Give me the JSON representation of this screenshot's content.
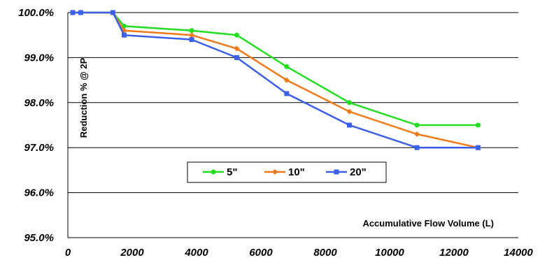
{
  "chart_data": {
    "type": "line",
    "title": "",
    "xlabel": "Accumulative Flow Volume (L)",
    "ylabel": "Reduction % @ 2P",
    "xlim": [
      0,
      14000
    ],
    "ylim": [
      95.0,
      100.0
    ],
    "xticks": [
      0,
      2000,
      4000,
      6000,
      8000,
      10000,
      12000,
      14000
    ],
    "xtick_labels": [
      "0",
      "2000",
      "4000",
      "6000",
      "8000",
      "10000",
      "12000",
      "14000"
    ],
    "yticks": [
      95.0,
      96.0,
      97.0,
      98.0,
      99.0,
      100.0
    ],
    "ytick_labels": [
      "95.0%",
      "96.0%",
      "97.0%",
      "98.0%",
      "99.0%",
      "100.0%"
    ],
    "grid": "horizontal",
    "legend_position": "center",
    "series": [
      {
        "name": "5\"",
        "color": "#22dd22",
        "marker": "circle",
        "x": [
          150,
          400,
          1400,
          1750,
          3850,
          5250,
          6800,
          8750,
          10850,
          12750
        ],
        "y": [
          100.0,
          100.0,
          100.0,
          99.7,
          99.6,
          99.5,
          98.8,
          98.0,
          97.5,
          97.5
        ]
      },
      {
        "name": "10\"",
        "color": "#f07a1a",
        "marker": "diamond",
        "x": [
          150,
          400,
          1400,
          1750,
          3850,
          5250,
          6800,
          8750,
          10850,
          12750
        ],
        "y": [
          100.0,
          100.0,
          100.0,
          99.6,
          99.5,
          99.2,
          98.5,
          97.8,
          97.3,
          97.0
        ]
      },
      {
        "name": "20\"",
        "color": "#3b5fe8",
        "marker": "square",
        "x": [
          150,
          400,
          1400,
          1750,
          3850,
          5250,
          6800,
          8750,
          10850,
          12750
        ],
        "y": [
          100.0,
          100.0,
          100.0,
          99.5,
          99.4,
          99.0,
          98.2,
          97.5,
          97.0,
          97.0
        ]
      }
    ]
  }
}
